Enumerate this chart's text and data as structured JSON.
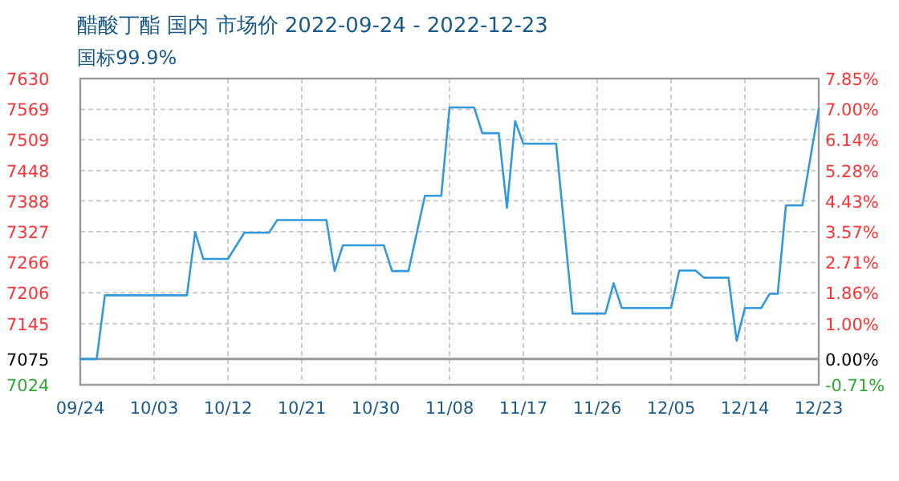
{
  "chart_data": {
    "type": "line",
    "title": "醋酸丁酯 国内 市场价 2022-09-24 - 2022-12-23",
    "subtitle": "国标99.9%",
    "x": [
      "2022-09-24",
      "2022-09-26",
      "2022-09-27",
      "2022-10-07",
      "2022-10-08",
      "2022-10-09",
      "2022-10-12",
      "2022-10-14",
      "2022-10-17",
      "2022-10-18",
      "2022-10-24",
      "2022-10-25",
      "2022-10-26",
      "2022-10-31",
      "2022-11-01",
      "2022-11-03",
      "2022-11-05",
      "2022-11-07",
      "2022-11-08",
      "2022-11-11",
      "2022-11-12",
      "2022-11-14",
      "2022-11-15",
      "2022-11-16",
      "2022-11-17",
      "2022-11-21",
      "2022-11-23",
      "2022-11-27",
      "2022-11-28",
      "2022-11-29",
      "2022-12-05",
      "2022-12-06",
      "2022-12-08",
      "2022-12-09",
      "2022-12-12",
      "2022-12-13",
      "2022-12-14",
      "2022-12-16",
      "2022-12-17",
      "2022-12-18",
      "2022-12-19",
      "2022-12-21",
      "2022-12-23"
    ],
    "series": [
      {
        "color": "#3399dd",
        "values": [
          7075,
          7075,
          7201,
          7201,
          7326,
          7273,
          7273,
          7325,
          7325,
          7350,
          7350,
          7249,
          7300,
          7300,
          7249,
          7249,
          7398,
          7398,
          7573,
          7573,
          7522,
          7522,
          7374,
          7546,
          7501,
          7501,
          7165,
          7165,
          7225,
          7176,
          7176,
          7250,
          7250,
          7236,
          7236,
          7111,
          7176,
          7176,
          7204,
          7204,
          7379,
          7379,
          7570
        ]
      }
    ],
    "xlim": [
      "2022-09-24",
      "2022-12-23"
    ],
    "xticks": [
      {
        "value": "2022-09-24",
        "label": "09/24"
      },
      {
        "value": "2022-10-03",
        "label": "10/03"
      },
      {
        "value": "2022-10-12",
        "label": "10/12"
      },
      {
        "value": "2022-10-21",
        "label": "10/21"
      },
      {
        "value": "2022-10-30",
        "label": "10/30"
      },
      {
        "value": "2022-11-08",
        "label": "11/08"
      },
      {
        "value": "2022-11-17",
        "label": "11/17"
      },
      {
        "value": "2022-11-26",
        "label": "11/26"
      },
      {
        "value": "2022-12-05",
        "label": "12/05"
      },
      {
        "value": "2022-12-14",
        "label": "12/14"
      },
      {
        "value": "2022-12-23",
        "label": "12/23"
      }
    ],
    "ylim": [
      7024,
      7630
    ],
    "yticks": [
      7024,
      7075,
      7145,
      7206,
      7266,
      7327,
      7388,
      7448,
      7509,
      7569,
      7630
    ],
    "y2lim": [
      -0.71,
      7.85
    ],
    "y2ticks": [
      {
        "value": -0.71,
        "label": "-0.71%"
      },
      {
        "value": 0,
        "label": "0.00%"
      },
      {
        "value": 1,
        "label": "1.00%"
      },
      {
        "value": 1.86,
        "label": "1.86%"
      },
      {
        "value": 2.71,
        "label": "2.71%"
      },
      {
        "value": 3.57,
        "label": "3.57%"
      },
      {
        "value": 4.43,
        "label": "4.43%"
      },
      {
        "value": 5.28,
        "label": "5.28%"
      },
      {
        "value": 6.14,
        "label": "6.14%"
      },
      {
        "value": 7,
        "label": "7.00%"
      },
      {
        "value": 7.85,
        "label": "7.85%"
      }
    ],
    "ref_lines": [
      {
        "axis": "y",
        "value": 7075,
        "color": "#999999"
      }
    ],
    "grid": true,
    "marker": "none",
    "line_style": "solid"
  }
}
